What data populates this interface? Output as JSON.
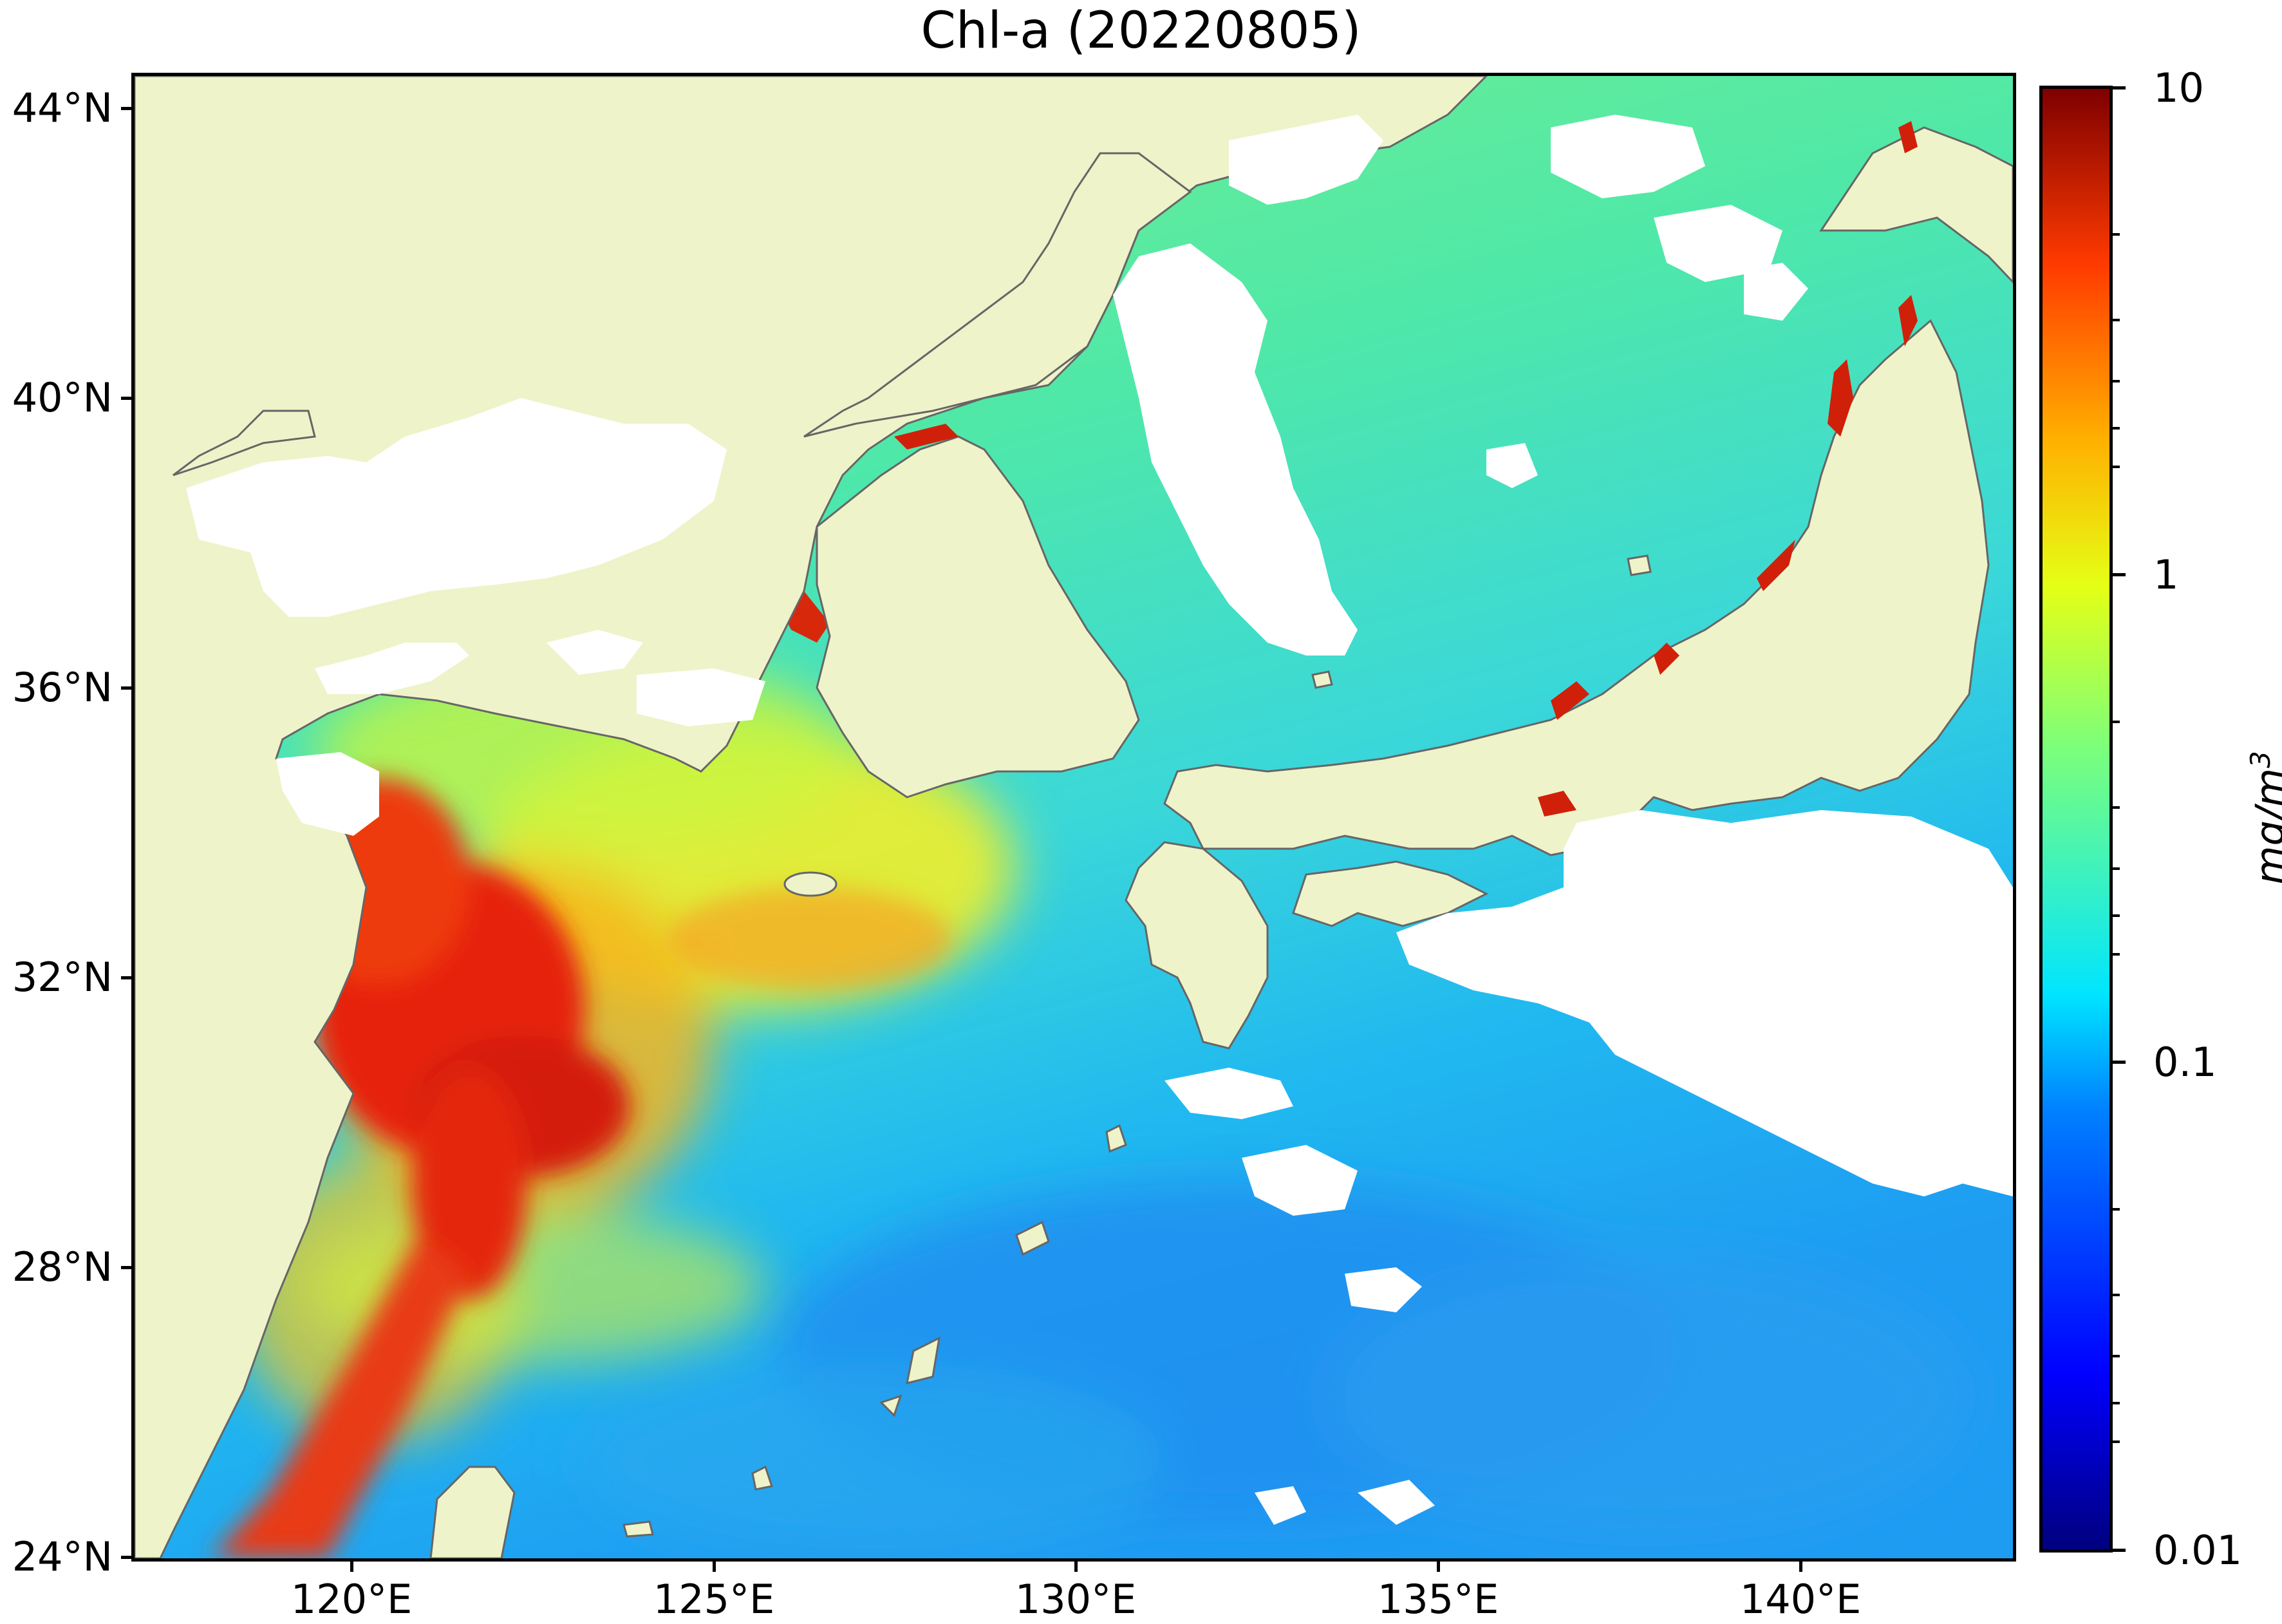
{
  "title": "Chl-a (20220805)",
  "map": {
    "extent": {
      "lon_min": 116.5,
      "lon_max": 143.0,
      "lat_min": 24.0,
      "lat_max": 44.5
    },
    "colors": {
      "land": "#eff3c9",
      "cloud_nodata": "#ffffff",
      "coastline": "#666666"
    },
    "lat_ticks": [
      "44°N",
      "40°N",
      "36°N",
      "32°N",
      "28°N",
      "24°N"
    ],
    "lon_ticks": [
      "120°E",
      "125°E",
      "130°E",
      "135°E",
      "140°E"
    ]
  },
  "colorbar": {
    "scale": "log",
    "range": [
      0.01,
      10
    ],
    "ticks": [
      "10",
      "1",
      "0.1",
      "0.01"
    ],
    "unit_base": "mg/m",
    "unit_exp": "3",
    "colormap": "jet"
  }
}
